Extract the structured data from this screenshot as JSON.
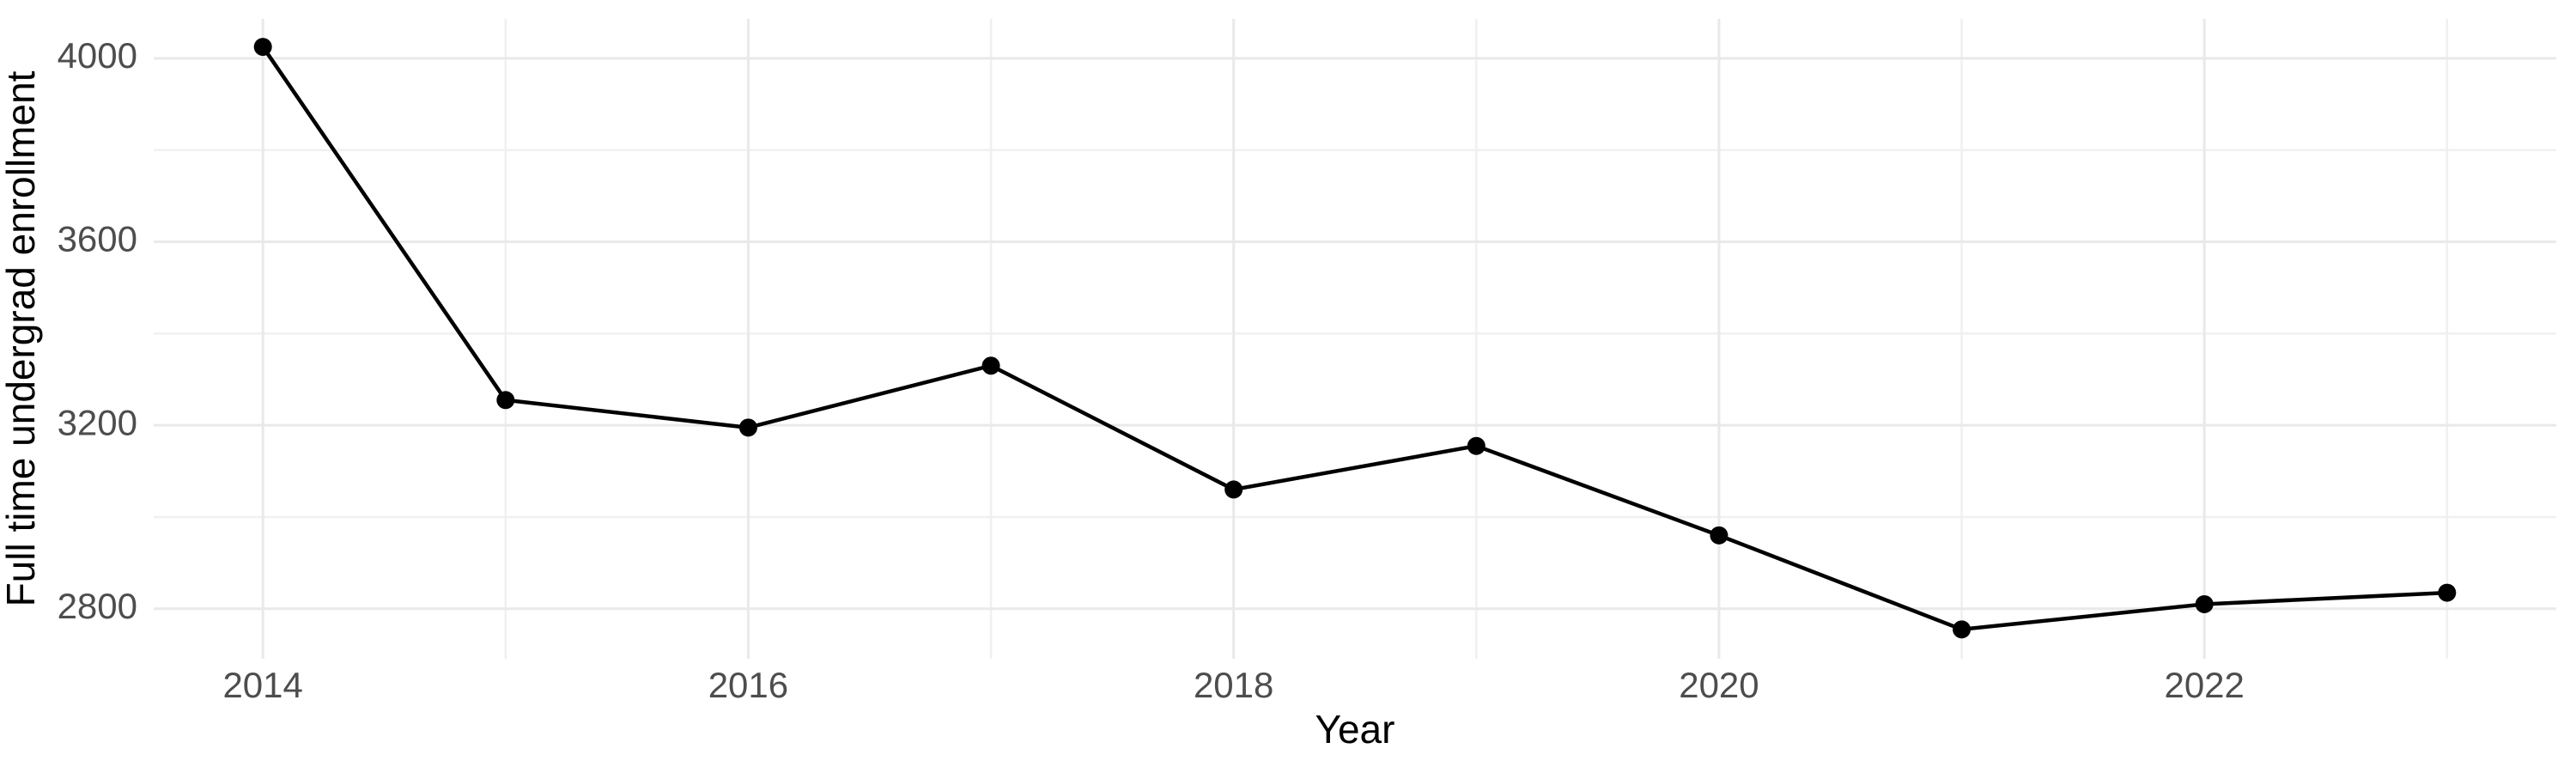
{
  "chart_data": {
    "type": "line",
    "title": "",
    "xlabel": "Year",
    "ylabel": "Full time undergrad enrollment",
    "x": [
      2014,
      2015,
      2016,
      2017,
      2018,
      2019,
      2020,
      2021,
      2022,
      2023
    ],
    "values": [
      4025,
      3255,
      3195,
      3330,
      3060,
      3155,
      2960,
      2755,
      2810,
      2835
    ],
    "x_tick_labels": [
      "2014",
      "2016",
      "2018",
      "2020",
      "2022"
    ],
    "x_major_ticks": [
      2014,
      2016,
      2018,
      2020,
      2022
    ],
    "x_minor_gridlines": [
      2015,
      2017,
      2019,
      2021,
      2023
    ],
    "y_tick_labels": [
      "2800",
      "3200",
      "3600",
      "4000"
    ],
    "y_major_ticks": [
      2800,
      3200,
      3600,
      4000
    ],
    "y_minor_gridlines": [
      3000,
      3400,
      3800
    ],
    "xlim": [
      2013.55,
      2023.45
    ],
    "ylim": [
      2691,
      4086
    ],
    "grid": "major-and-minor",
    "legend": "none",
    "point_marker": "filled-circle",
    "colors": {
      "line": "#000000",
      "point": "#000000",
      "grid_major": "#e9e9e9",
      "grid_minor": "#f0f0f0",
      "tick_label": "#4d4d4d",
      "axis_title": "#000000",
      "background": "#ffffff"
    }
  }
}
